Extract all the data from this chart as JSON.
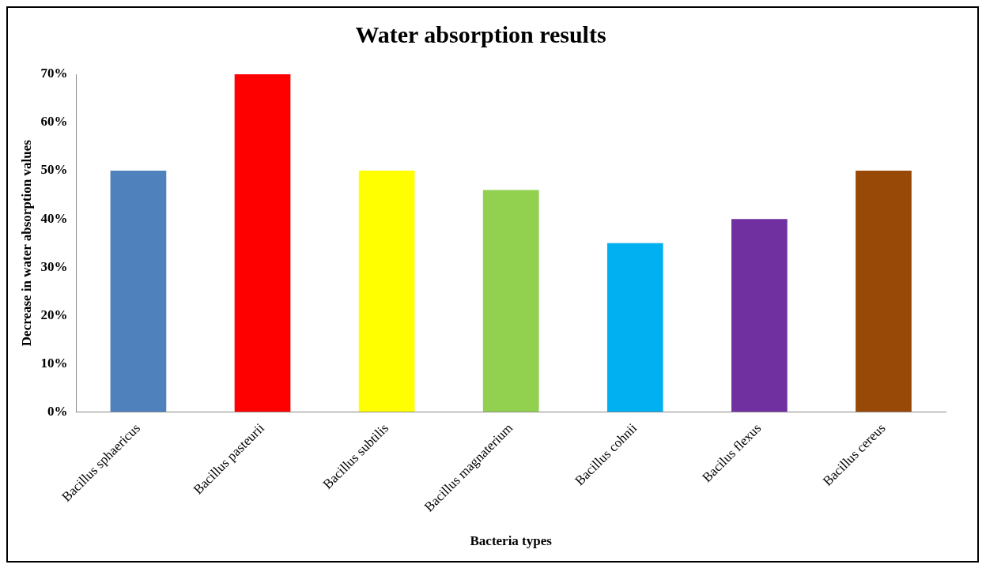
{
  "chart_data": {
    "type": "bar",
    "title": "Water absorption results",
    "xlabel": "Bacteria types",
    "ylabel": "Decrease in water absorption values",
    "categories": [
      "Bacillus sphaericus",
      "Bacillus pasteurii",
      "Bacillus subtilis",
      "Bacillus magnaterium",
      "Bacillus cohnii",
      "Bacilus flexus",
      "Bacillus cereus"
    ],
    "values": [
      50,
      70,
      50,
      46,
      35,
      40,
      50
    ],
    "colors": [
      "#4f81bd",
      "#ff0000",
      "#ffff00",
      "#92d050",
      "#00b0f0",
      "#7030a0",
      "#984807"
    ],
    "ylim": [
      0,
      70
    ],
    "yticks": [
      {
        "value": 0,
        "label": "0%"
      },
      {
        "value": 10,
        "label": "10%"
      },
      {
        "value": 20,
        "label": "20%"
      },
      {
        "value": 30,
        "label": "30%"
      },
      {
        "value": 40,
        "label": "40%"
      },
      {
        "value": 50,
        "label": "50%"
      },
      {
        "value": 60,
        "label": "60%"
      },
      {
        "value": 70,
        "label": "70%"
      }
    ],
    "grid": false,
    "legend": false
  }
}
